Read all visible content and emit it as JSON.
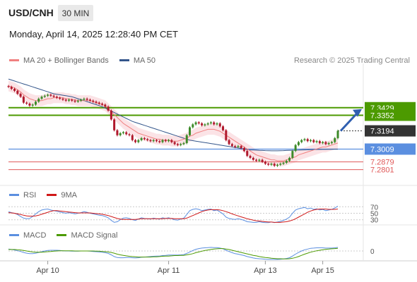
{
  "header": {
    "symbol": "USD/CNH",
    "timeframe": "30 MIN",
    "datetime": "Monday, April 14, 2025 12:28:40 PM CET"
  },
  "legend": {
    "ma20": "MA 20 + Bollinger Bands",
    "ma50": "MA 50",
    "credit": "Research © 2025 Trading Central",
    "rsi": "RSI",
    "rsi_ma": "9MA",
    "macd": "MACD",
    "macd_signal": "MACD Signal"
  },
  "colors": {
    "ma20": "#f08080",
    "ma50": "#34568b",
    "band": "#fadadd",
    "resistance": "#4c9a00",
    "support": "#5b8fe0",
    "target": "#e05858",
    "arrow": "#2f5fb0",
    "up_candle": "#3c8a28",
    "down_candle": "#b0182c"
  },
  "chart_data": [
    {
      "type": "candlestick",
      "panel": "price",
      "x_ticks": [
        "Apr 10",
        "Apr 11",
        "Apr 13",
        "Apr 15"
      ],
      "ylim": [
        7.2662,
        7.3842
      ],
      "levels": [
        {
          "value": 7.3429,
          "label": "7.3429",
          "style": "resistance"
        },
        {
          "value": 7.3352,
          "label": "7.3352",
          "style": "resistance"
        },
        {
          "value": 7.3194,
          "label": "7.3194",
          "style": "last"
        },
        {
          "value": 7.3009,
          "label": "7.3009",
          "style": "support"
        },
        {
          "value": 7.2879,
          "label": "7.2879",
          "style": "target"
        },
        {
          "value": 7.2801,
          "label": "7.2801",
          "style": "target"
        }
      ],
      "closes": [
        7.364,
        7.362,
        7.36,
        7.357,
        7.354,
        7.348,
        7.347,
        7.345,
        7.346,
        7.349,
        7.352,
        7.354,
        7.355,
        7.356,
        7.355,
        7.354,
        7.353,
        7.352,
        7.351,
        7.35,
        7.351,
        7.35,
        7.349,
        7.35,
        7.351,
        7.352,
        7.351,
        7.35,
        7.349,
        7.348,
        7.347,
        7.346,
        7.344,
        7.34,
        7.331,
        7.32,
        7.315,
        7.317,
        7.318,
        7.316,
        7.315,
        7.31,
        7.308,
        7.31,
        7.312,
        7.311,
        7.31,
        7.309,
        7.31,
        7.309,
        7.308,
        7.31,
        7.309,
        7.31,
        7.308,
        7.306,
        7.305,
        7.306,
        7.307,
        7.315,
        7.323,
        7.326,
        7.328,
        7.327,
        7.325,
        7.326,
        7.327,
        7.328,
        7.326,
        7.327,
        7.324,
        7.32,
        7.31,
        7.306,
        7.304,
        7.303,
        7.304,
        7.302,
        7.299,
        7.294,
        7.292,
        7.29,
        7.289,
        7.29,
        7.288,
        7.286,
        7.285,
        7.286,
        7.284,
        7.285,
        7.286,
        7.287,
        7.289,
        7.292,
        7.299,
        7.305,
        7.308,
        7.31,
        7.311,
        7.309,
        7.31,
        7.308,
        7.309,
        7.307,
        7.308,
        7.306,
        7.307,
        7.308,
        7.312,
        7.3194
      ],
      "ma20": [
        7.365,
        7.364,
        7.363,
        7.361,
        7.359,
        7.356,
        7.354,
        7.352,
        7.351,
        7.35,
        7.35,
        7.35,
        7.351,
        7.352,
        7.352,
        7.353,
        7.353,
        7.353,
        7.353,
        7.352,
        7.352,
        7.351,
        7.351,
        7.35,
        7.35,
        7.35,
        7.35,
        7.35,
        7.349,
        7.348,
        7.347,
        7.346,
        7.345,
        7.342,
        7.339,
        7.336,
        7.333,
        7.33,
        7.327,
        7.325,
        7.323,
        7.321,
        7.319,
        7.317,
        7.316,
        7.315,
        7.314,
        7.313,
        7.312,
        7.311,
        7.311,
        7.31,
        7.31,
        7.31,
        7.309,
        7.309,
        7.309,
        7.31,
        7.311,
        7.312,
        7.314,
        7.315,
        7.317,
        7.318,
        7.319,
        7.32,
        7.321,
        7.321,
        7.321,
        7.32,
        7.319,
        7.317,
        7.315,
        7.313,
        7.311,
        7.309,
        7.307,
        7.305,
        7.303,
        7.301,
        7.299,
        7.297,
        7.295,
        7.294,
        7.293,
        7.292,
        7.291,
        7.29,
        7.29,
        7.289,
        7.289,
        7.289,
        7.29,
        7.291,
        7.292,
        7.293,
        7.295,
        7.296,
        7.297,
        7.298,
        7.299,
        7.3,
        7.301,
        7.302,
        7.303,
        7.303,
        7.304,
        7.305,
        7.306,
        7.307
      ],
      "ma50": [
        7.372,
        7.371,
        7.37,
        7.369,
        7.368,
        7.367,
        7.366,
        7.365,
        7.364,
        7.363,
        7.362,
        7.361,
        7.36,
        7.359,
        7.358,
        7.357,
        7.3565,
        7.356,
        7.3555,
        7.355,
        7.3545,
        7.354,
        7.353,
        7.352,
        7.351,
        7.35,
        7.349,
        7.348,
        7.347,
        7.346,
        7.345,
        7.344,
        7.3425,
        7.341,
        7.3395,
        7.338,
        7.3365,
        7.335,
        7.3335,
        7.332,
        7.3305,
        7.329,
        7.328,
        7.327,
        7.326,
        7.325,
        7.324,
        7.323,
        7.322,
        7.321,
        7.32,
        7.319,
        7.318,
        7.317,
        7.316,
        7.315,
        7.314,
        7.313,
        7.312,
        7.311,
        7.31,
        7.3095,
        7.309,
        7.3085,
        7.308,
        7.3075,
        7.307,
        7.3065,
        7.306,
        7.3055,
        7.305,
        7.3045,
        7.304,
        7.3035,
        7.303,
        7.3025,
        7.302,
        7.3015,
        7.301,
        7.3005,
        7.3,
        7.3,
        7.2998,
        7.2996,
        7.2995,
        7.2994,
        7.2993,
        7.2992,
        7.2992,
        7.2992,
        7.2993,
        7.2994,
        7.2995,
        7.2996,
        7.2997,
        7.2998,
        7.2999,
        7.3,
        7.3001,
        7.3002,
        7.3003,
        7.3004,
        7.3005,
        7.3005,
        7.3006,
        7.3006,
        7.3007,
        7.3007,
        7.3008,
        7.3008
      ]
    },
    {
      "type": "line",
      "panel": "rsi",
      "levels": [
        70,
        50,
        30
      ],
      "series": [
        {
          "name": "RSI",
          "values": [
            55,
            52,
            50,
            46,
            40,
            35,
            33,
            34,
            40,
            48,
            55,
            60,
            62,
            63,
            60,
            58,
            56,
            54,
            52,
            50,
            52,
            50,
            48,
            50,
            52,
            55,
            53,
            50,
            48,
            46,
            44,
            43,
            40,
            36,
            28,
            22,
            24,
            30,
            35,
            36,
            34,
            30,
            28,
            32,
            36,
            34,
            33,
            32,
            35,
            33,
            32,
            36,
            34,
            36,
            33,
            30,
            29,
            32,
            35,
            46,
            58,
            62,
            64,
            62,
            58,
            60,
            62,
            63,
            58,
            60,
            54,
            48,
            38,
            34,
            32,
            31,
            33,
            31,
            28,
            24,
            23,
            22,
            22,
            24,
            22,
            21,
            21,
            23,
            21,
            23,
            25,
            28,
            32,
            38,
            50,
            60,
            64,
            66,
            68,
            64,
            66,
            62,
            64,
            60,
            62,
            58,
            60,
            62,
            66,
            72
          ]
        },
        {
          "name": "9MA",
          "values": [
            52,
            51,
            50,
            48,
            46,
            44,
            42,
            41,
            41,
            42,
            44,
            47,
            50,
            53,
            56,
            58,
            58,
            57,
            56,
            55,
            54,
            53,
            52,
            51,
            51,
            51,
            51,
            51,
            50,
            49,
            48,
            47,
            45,
            43,
            40,
            37,
            34,
            32,
            31,
            31,
            31,
            31,
            31,
            32,
            33,
            33,
            33,
            33,
            33,
            33,
            33,
            33,
            34,
            34,
            34,
            33,
            33,
            33,
            33,
            35,
            39,
            43,
            47,
            51,
            55,
            58,
            60,
            61,
            61,
            61,
            60,
            58,
            55,
            52,
            48,
            45,
            42,
            39,
            36,
            33,
            31,
            29,
            27,
            26,
            25,
            24,
            23,
            23,
            22,
            22,
            22,
            23,
            24,
            26,
            29,
            33,
            38,
            43,
            48,
            53,
            57,
            60,
            62,
            63,
            63,
            63,
            62,
            62,
            62,
            63
          ]
        }
      ]
    },
    {
      "type": "line",
      "panel": "macd",
      "levels": [
        0
      ],
      "series": [
        {
          "name": "MACD",
          "values": [
            0.0008,
            0.0006,
            0.0004,
            0.0001,
            -0.0002,
            -0.0006,
            -0.0009,
            -0.0011,
            -0.0011,
            -0.0009,
            -0.0006,
            -0.0003,
            0.0,
            0.0002,
            0.0003,
            0.0003,
            0.0003,
            0.0002,
            0.0001,
            0.0,
            0.0,
            -0.0001,
            -0.0001,
            -0.0001,
            0.0,
            0.0,
            0.0,
            -0.0001,
            -0.0002,
            -0.0003,
            -0.0004,
            -0.0005,
            -0.0007,
            -0.001,
            -0.0016,
            -0.0023,
            -0.0027,
            -0.0028,
            -0.0028,
            -0.0027,
            -0.0027,
            -0.0028,
            -0.0029,
            -0.0028,
            -0.0026,
            -0.0025,
            -0.0024,
            -0.0023,
            -0.0022,
            -0.0021,
            -0.0021,
            -0.0019,
            -0.0018,
            -0.0017,
            -0.0017,
            -0.0017,
            -0.0017,
            -0.0016,
            -0.0015,
            -0.001,
            -0.0004,
            0.0002,
            0.0007,
            0.001,
            0.0012,
            0.0013,
            0.0014,
            0.0015,
            0.0014,
            0.0014,
            0.0012,
            0.0009,
            0.0003,
            -0.0002,
            -0.0007,
            -0.0011,
            -0.0013,
            -0.0016,
            -0.0019,
            -0.0023,
            -0.0026,
            -0.0029,
            -0.0031,
            -0.0032,
            -0.0033,
            -0.0034,
            -0.0035,
            -0.0035,
            -0.0035,
            -0.0035,
            -0.0034,
            -0.0033,
            -0.0031,
            -0.0028,
            -0.0021,
            -0.0013,
            -0.0006,
            0.0,
            0.0005,
            0.0008,
            0.0011,
            0.0012,
            0.0013,
            0.0013,
            0.0013,
            0.0012,
            0.0012,
            0.0012,
            0.0013,
            0.0015
          ]
        },
        {
          "name": "MACD Signal",
          "values": [
            0.0006,
            0.0006,
            0.0006,
            0.0005,
            0.0004,
            0.0002,
            0.0,
            -0.0002,
            -0.0004,
            -0.0005,
            -0.0005,
            -0.0005,
            -0.0004,
            -0.0003,
            -0.0002,
            -0.0001,
            0.0,
            0.0001,
            0.0001,
            0.0001,
            0.0001,
            0.0001,
            0.0,
            0.0,
            0.0,
            0.0,
            0.0,
            0.0,
            0.0,
            -0.0001,
            -0.0001,
            -0.0002,
            -0.0003,
            -0.0004,
            -0.0006,
            -0.0009,
            -0.0013,
            -0.0016,
            -0.0018,
            -0.002,
            -0.0022,
            -0.0023,
            -0.0024,
            -0.0025,
            -0.0025,
            -0.0025,
            -0.0025,
            -0.0025,
            -0.0024,
            -0.0024,
            -0.0023,
            -0.0022,
            -0.0021,
            -0.0021,
            -0.002,
            -0.0019,
            -0.0019,
            -0.0018,
            -0.0018,
            -0.0016,
            -0.0014,
            -0.0011,
            -0.0007,
            -0.0004,
            -0.0001,
            0.0002,
            0.0004,
            0.0006,
            0.0008,
            0.0009,
            0.001,
            0.001,
            0.0008,
            0.0006,
            0.0003,
            0.0,
            -0.0003,
            -0.0006,
            -0.0009,
            -0.0012,
            -0.0015,
            -0.0018,
            -0.002,
            -0.0023,
            -0.0025,
            -0.0027,
            -0.0028,
            -0.003,
            -0.0031,
            -0.0032,
            -0.0032,
            -0.0033,
            -0.0033,
            -0.0032,
            -0.003,
            -0.0027,
            -0.0023,
            -0.0018,
            -0.0013,
            -0.0009,
            -0.0005,
            -0.0002,
            0.0001,
            0.0003,
            0.0005,
            0.0007,
            0.0008,
            0.0009,
            0.001,
            0.0011
          ]
        }
      ]
    }
  ]
}
